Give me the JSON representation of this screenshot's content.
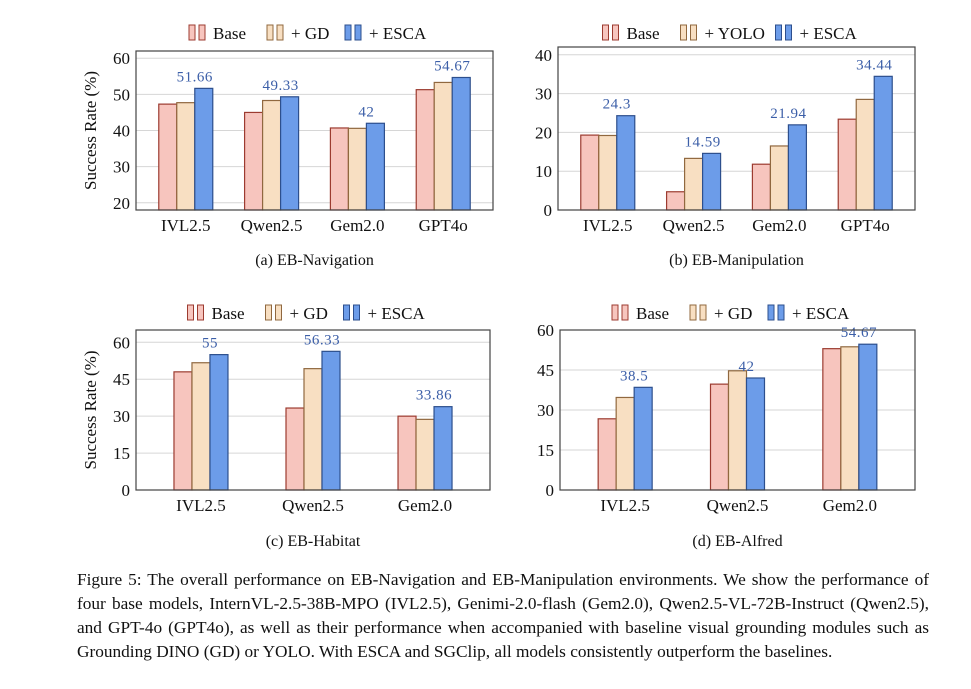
{
  "colors": {
    "base_fill": "#f7c5be",
    "base_stroke": "#9c3b30",
    "gd_fill": "#f8dfc2",
    "gd_stroke": "#90683f",
    "esca_fill": "#6c9ce9",
    "esca_stroke": "#2d4f8d",
    "label": "#3c5fa8",
    "grid": "#d6d6d6"
  },
  "chart_data": [
    {
      "type": "bar",
      "caption": "(a) EB-Navigation",
      "ylabel": "Success Rate (%)",
      "ylim": [
        18,
        62
      ],
      "yticks": [
        20,
        30,
        40,
        50,
        60
      ],
      "grid": true,
      "legend_placement": "top",
      "categories": [
        "IVL2.5",
        "Qwen2.5",
        "Gem2.0",
        "GPT4o"
      ],
      "series": [
        {
          "name": "Base",
          "values": [
            47.3,
            45.0,
            40.7,
            51.3
          ]
        },
        {
          "name": "+ GD",
          "values": [
            47.7,
            48.3,
            40.6,
            53.3
          ]
        },
        {
          "name": "+ ESCA",
          "values": [
            51.66,
            49.33,
            42,
            54.67
          ]
        }
      ],
      "data_labels": [
        "51.66",
        "49.33",
        "42",
        "54.67"
      ]
    },
    {
      "type": "bar",
      "caption": "(b) EB-Manipulation",
      "ylabel": "",
      "ylim": [
        0,
        42
      ],
      "yticks": [
        0,
        10,
        20,
        30,
        40
      ],
      "grid": true,
      "legend_placement": "top",
      "categories": [
        "IVL2.5",
        "Qwen2.5",
        "Gem2.0",
        "GPT4o"
      ],
      "series": [
        {
          "name": "Base",
          "values": [
            19.3,
            4.7,
            11.8,
            23.4
          ]
        },
        {
          "name": "+ YOLO",
          "values": [
            19.2,
            13.3,
            16.5,
            28.5
          ]
        },
        {
          "name": "+ ESCA",
          "values": [
            24.3,
            14.59,
            21.94,
            34.44
          ]
        }
      ],
      "data_labels": [
        "24.3",
        "14.59",
        "21.94",
        "34.44"
      ]
    },
    {
      "type": "bar",
      "caption": "(c) EB-Habitat",
      "ylabel": "Success Rate (%)",
      "ylim": [
        0,
        65
      ],
      "yticks": [
        0,
        15,
        30,
        45,
        60
      ],
      "grid": true,
      "legend_placement": "top",
      "categories": [
        "IVL2.5",
        "Qwen2.5",
        "Gem2.0"
      ],
      "series": [
        {
          "name": "Base",
          "values": [
            48.0,
            33.3,
            30.0
          ]
        },
        {
          "name": "+ GD",
          "values": [
            51.7,
            49.3,
            28.7
          ]
        },
        {
          "name": "+ ESCA",
          "values": [
            55,
            56.33,
            33.86
          ]
        }
      ],
      "data_labels": [
        "55",
        "56.33",
        "33.86"
      ]
    },
    {
      "type": "bar",
      "caption": "(d) EB-Alfred",
      "ylabel": "",
      "ylim": [
        0,
        60
      ],
      "yticks": [
        0,
        15,
        30,
        45,
        60
      ],
      "grid": true,
      "legend_placement": "top",
      "categories": [
        "IVL2.5",
        "Qwen2.5",
        "Gem2.0"
      ],
      "series": [
        {
          "name": "Base",
          "values": [
            26.7,
            39.7,
            53.0
          ]
        },
        {
          "name": "+ GD",
          "values": [
            34.7,
            44.7,
            53.7
          ]
        },
        {
          "name": "+ ESCA",
          "values": [
            38.5,
            42,
            54.67
          ]
        }
      ],
      "data_labels": [
        "38.5",
        "42",
        "54.67"
      ]
    }
  ],
  "figure_caption": "Figure 5: The overall performance on EB-Navigation and EB-Manipulation environments. We show the performance of four base models, InternVL-2.5-38B-MPO (IVL2.5), Genimi-2.0-flash (Gem2.0), Qwen2.5-VL-72B-Instruct (Qwen2.5), and GPT-4o (GPT4o), as well as their performance when accompanied with baseline visual grounding modules such as Grounding DINO (GD) or YOLO. With ESCA and SGClip, all models consistently outperform the baselines."
}
